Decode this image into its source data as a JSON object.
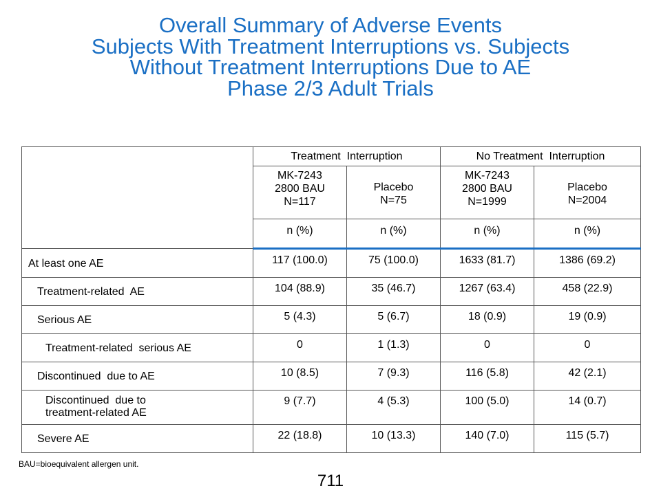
{
  "title": {
    "lines": [
      "Overall Summary of Adverse Events",
      "Subjects With Treatment Interruptions vs. Subjects",
      "Without Treatment Interruptions Due to AE",
      "Phase 2/3 Adult Trials"
    ]
  },
  "table": {
    "groups": [
      "Treatment  Interruption",
      "No Treatment  Interruption"
    ],
    "arms": [
      {
        "lines": [
          "MK-7243",
          "2800 BAU",
          "N=117"
        ]
      },
      {
        "lines": [
          "Placebo",
          "N=75"
        ]
      },
      {
        "lines": [
          "MK-7243",
          "2800 BAU",
          "N=1999"
        ]
      },
      {
        "lines": [
          "Placebo",
          "N=2004"
        ]
      }
    ],
    "unit_label": "n (%)",
    "rows": [
      {
        "label": "At least one AE",
        "values": [
          "117 (100.0)",
          "75 (100.0)",
          "1633 (81.7)",
          "1386 (69.2)"
        ]
      },
      {
        "label": "Treatment-related  AE",
        "values": [
          "104 (88.9)",
          "35 (46.7)",
          "1267 (63.4)",
          "458 (22.9)"
        ]
      },
      {
        "label": "Serious AE",
        "values": [
          "5 (4.3)",
          "5 (6.7)",
          "18 (0.9)",
          "19 (0.9)"
        ]
      },
      {
        "label": "Treatment-related  serious AE",
        "values": [
          "0",
          "1 (1.3)",
          "0",
          "0"
        ]
      },
      {
        "label": "Discontinued  due to AE",
        "values": [
          "10 (8.5)",
          "7 (9.3)",
          "116 (5.8)",
          "42 (2.1)"
        ]
      },
      {
        "label_lines": [
          "Discontinued  due to",
          "treatment-related AE"
        ],
        "values": [
          "9 (7.7)",
          "4 (5.3)",
          "100 (5.0)",
          "14 (0.7)"
        ]
      },
      {
        "label": "Severe AE",
        "values": [
          "22 (18.8)",
          "10 (13.3)",
          "140 (7.0)",
          "115 (5.7)"
        ]
      }
    ]
  },
  "footnote": "BAU=bioequivalent allergen unit.",
  "page_number": "711",
  "colors": {
    "title": "#1a6fc4",
    "header_rule": "#1a6fc4",
    "border": "#555555"
  }
}
